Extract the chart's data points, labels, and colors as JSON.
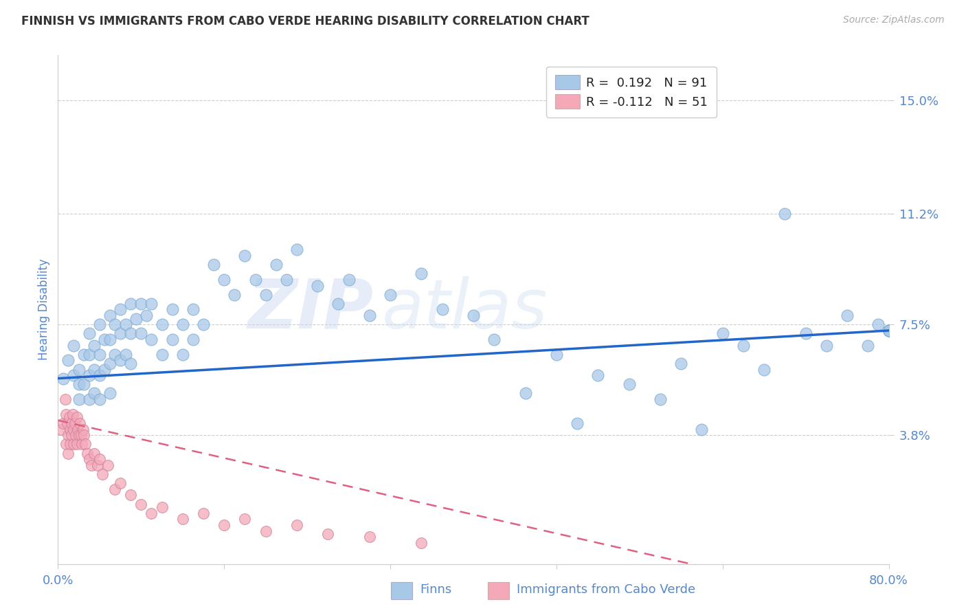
{
  "title": "FINNISH VS IMMIGRANTS FROM CABO VERDE HEARING DISABILITY CORRELATION CHART",
  "source": "Source: ZipAtlas.com",
  "ylabel": "Hearing Disability",
  "xlabel": "",
  "xlim": [
    0.0,
    0.8
  ],
  "ylim": [
    -0.005,
    0.165
  ],
  "yticks": [
    0.038,
    0.075,
    0.112,
    0.15
  ],
  "ytick_labels": [
    "3.8%",
    "7.5%",
    "11.2%",
    "15.0%"
  ],
  "xticks": [
    0.0,
    0.16,
    0.32,
    0.48,
    0.64,
    0.8
  ],
  "xtick_labels": [
    "0.0%",
    "",
    "",
    "",
    "",
    "80.0%"
  ],
  "finns_color": "#a8c8e8",
  "cabo_color": "#f4a8b8",
  "finn_line_color": "#2266cc",
  "cabo_line_color": "#e06080",
  "watermark_zip": "ZIP",
  "watermark_atlas": "atlas",
  "background_color": "#ffffff",
  "grid_color": "#cccccc",
  "title_color": "#444444",
  "axis_label_color": "#5588cc",
  "legend_r1": "R = ",
  "legend_v1": " 0.192",
  "legend_n1": "   N = ",
  "legend_nv1": "91",
  "legend_r2": "R = ",
  "legend_v2": "-0.112",
  "legend_n2": "   N = ",
  "legend_nv2": "51",
  "finns_x": [
    0.005,
    0.01,
    0.015,
    0.015,
    0.02,
    0.02,
    0.02,
    0.025,
    0.025,
    0.03,
    0.03,
    0.03,
    0.03,
    0.035,
    0.035,
    0.035,
    0.04,
    0.04,
    0.04,
    0.04,
    0.045,
    0.045,
    0.05,
    0.05,
    0.05,
    0.05,
    0.055,
    0.055,
    0.06,
    0.06,
    0.06,
    0.065,
    0.065,
    0.07,
    0.07,
    0.07,
    0.075,
    0.08,
    0.08,
    0.085,
    0.09,
    0.09,
    0.1,
    0.1,
    0.11,
    0.11,
    0.12,
    0.12,
    0.13,
    0.13,
    0.14,
    0.15,
    0.16,
    0.17,
    0.18,
    0.19,
    0.2,
    0.21,
    0.22,
    0.23,
    0.25,
    0.27,
    0.28,
    0.3,
    0.32,
    0.35,
    0.37,
    0.4,
    0.42,
    0.45,
    0.48,
    0.5,
    0.52,
    0.55,
    0.58,
    0.6,
    0.62,
    0.64,
    0.66,
    0.68,
    0.7,
    0.72,
    0.74,
    0.76,
    0.78,
    0.79,
    0.8,
    0.8,
    0.8,
    0.8,
    0.8
  ],
  "finns_y": [
    0.057,
    0.063,
    0.058,
    0.068,
    0.06,
    0.055,
    0.05,
    0.065,
    0.055,
    0.072,
    0.065,
    0.058,
    0.05,
    0.068,
    0.06,
    0.052,
    0.075,
    0.065,
    0.058,
    0.05,
    0.07,
    0.06,
    0.078,
    0.07,
    0.062,
    0.052,
    0.075,
    0.065,
    0.08,
    0.072,
    0.063,
    0.075,
    0.065,
    0.082,
    0.072,
    0.062,
    0.077,
    0.082,
    0.072,
    0.078,
    0.082,
    0.07,
    0.075,
    0.065,
    0.08,
    0.07,
    0.075,
    0.065,
    0.08,
    0.07,
    0.075,
    0.095,
    0.09,
    0.085,
    0.098,
    0.09,
    0.085,
    0.095,
    0.09,
    0.1,
    0.088,
    0.082,
    0.09,
    0.078,
    0.085,
    0.092,
    0.08,
    0.078,
    0.07,
    0.052,
    0.065,
    0.042,
    0.058,
    0.055,
    0.05,
    0.062,
    0.04,
    0.072,
    0.068,
    0.06,
    0.112,
    0.072,
    0.068,
    0.078,
    0.068,
    0.075,
    0.073,
    0.073,
    0.073,
    0.073,
    0.073
  ],
  "cabo_x": [
    0.003,
    0.005,
    0.007,
    0.008,
    0.008,
    0.009,
    0.01,
    0.01,
    0.011,
    0.012,
    0.012,
    0.013,
    0.013,
    0.014,
    0.015,
    0.015,
    0.016,
    0.017,
    0.018,
    0.018,
    0.019,
    0.02,
    0.021,
    0.022,
    0.023,
    0.024,
    0.025,
    0.026,
    0.028,
    0.03,
    0.032,
    0.035,
    0.038,
    0.04,
    0.043,
    0.048,
    0.055,
    0.06,
    0.07,
    0.08,
    0.09,
    0.1,
    0.12,
    0.14,
    0.16,
    0.18,
    0.2,
    0.23,
    0.26,
    0.3,
    0.35
  ],
  "cabo_y": [
    0.04,
    0.042,
    0.05,
    0.045,
    0.035,
    0.042,
    0.038,
    0.032,
    0.044,
    0.04,
    0.035,
    0.042,
    0.038,
    0.045,
    0.04,
    0.035,
    0.042,
    0.038,
    0.044,
    0.035,
    0.04,
    0.038,
    0.042,
    0.038,
    0.035,
    0.04,
    0.038,
    0.035,
    0.032,
    0.03,
    0.028,
    0.032,
    0.028,
    0.03,
    0.025,
    0.028,
    0.02,
    0.022,
    0.018,
    0.015,
    0.012,
    0.014,
    0.01,
    0.012,
    0.008,
    0.01,
    0.006,
    0.008,
    0.005,
    0.004,
    0.002
  ]
}
